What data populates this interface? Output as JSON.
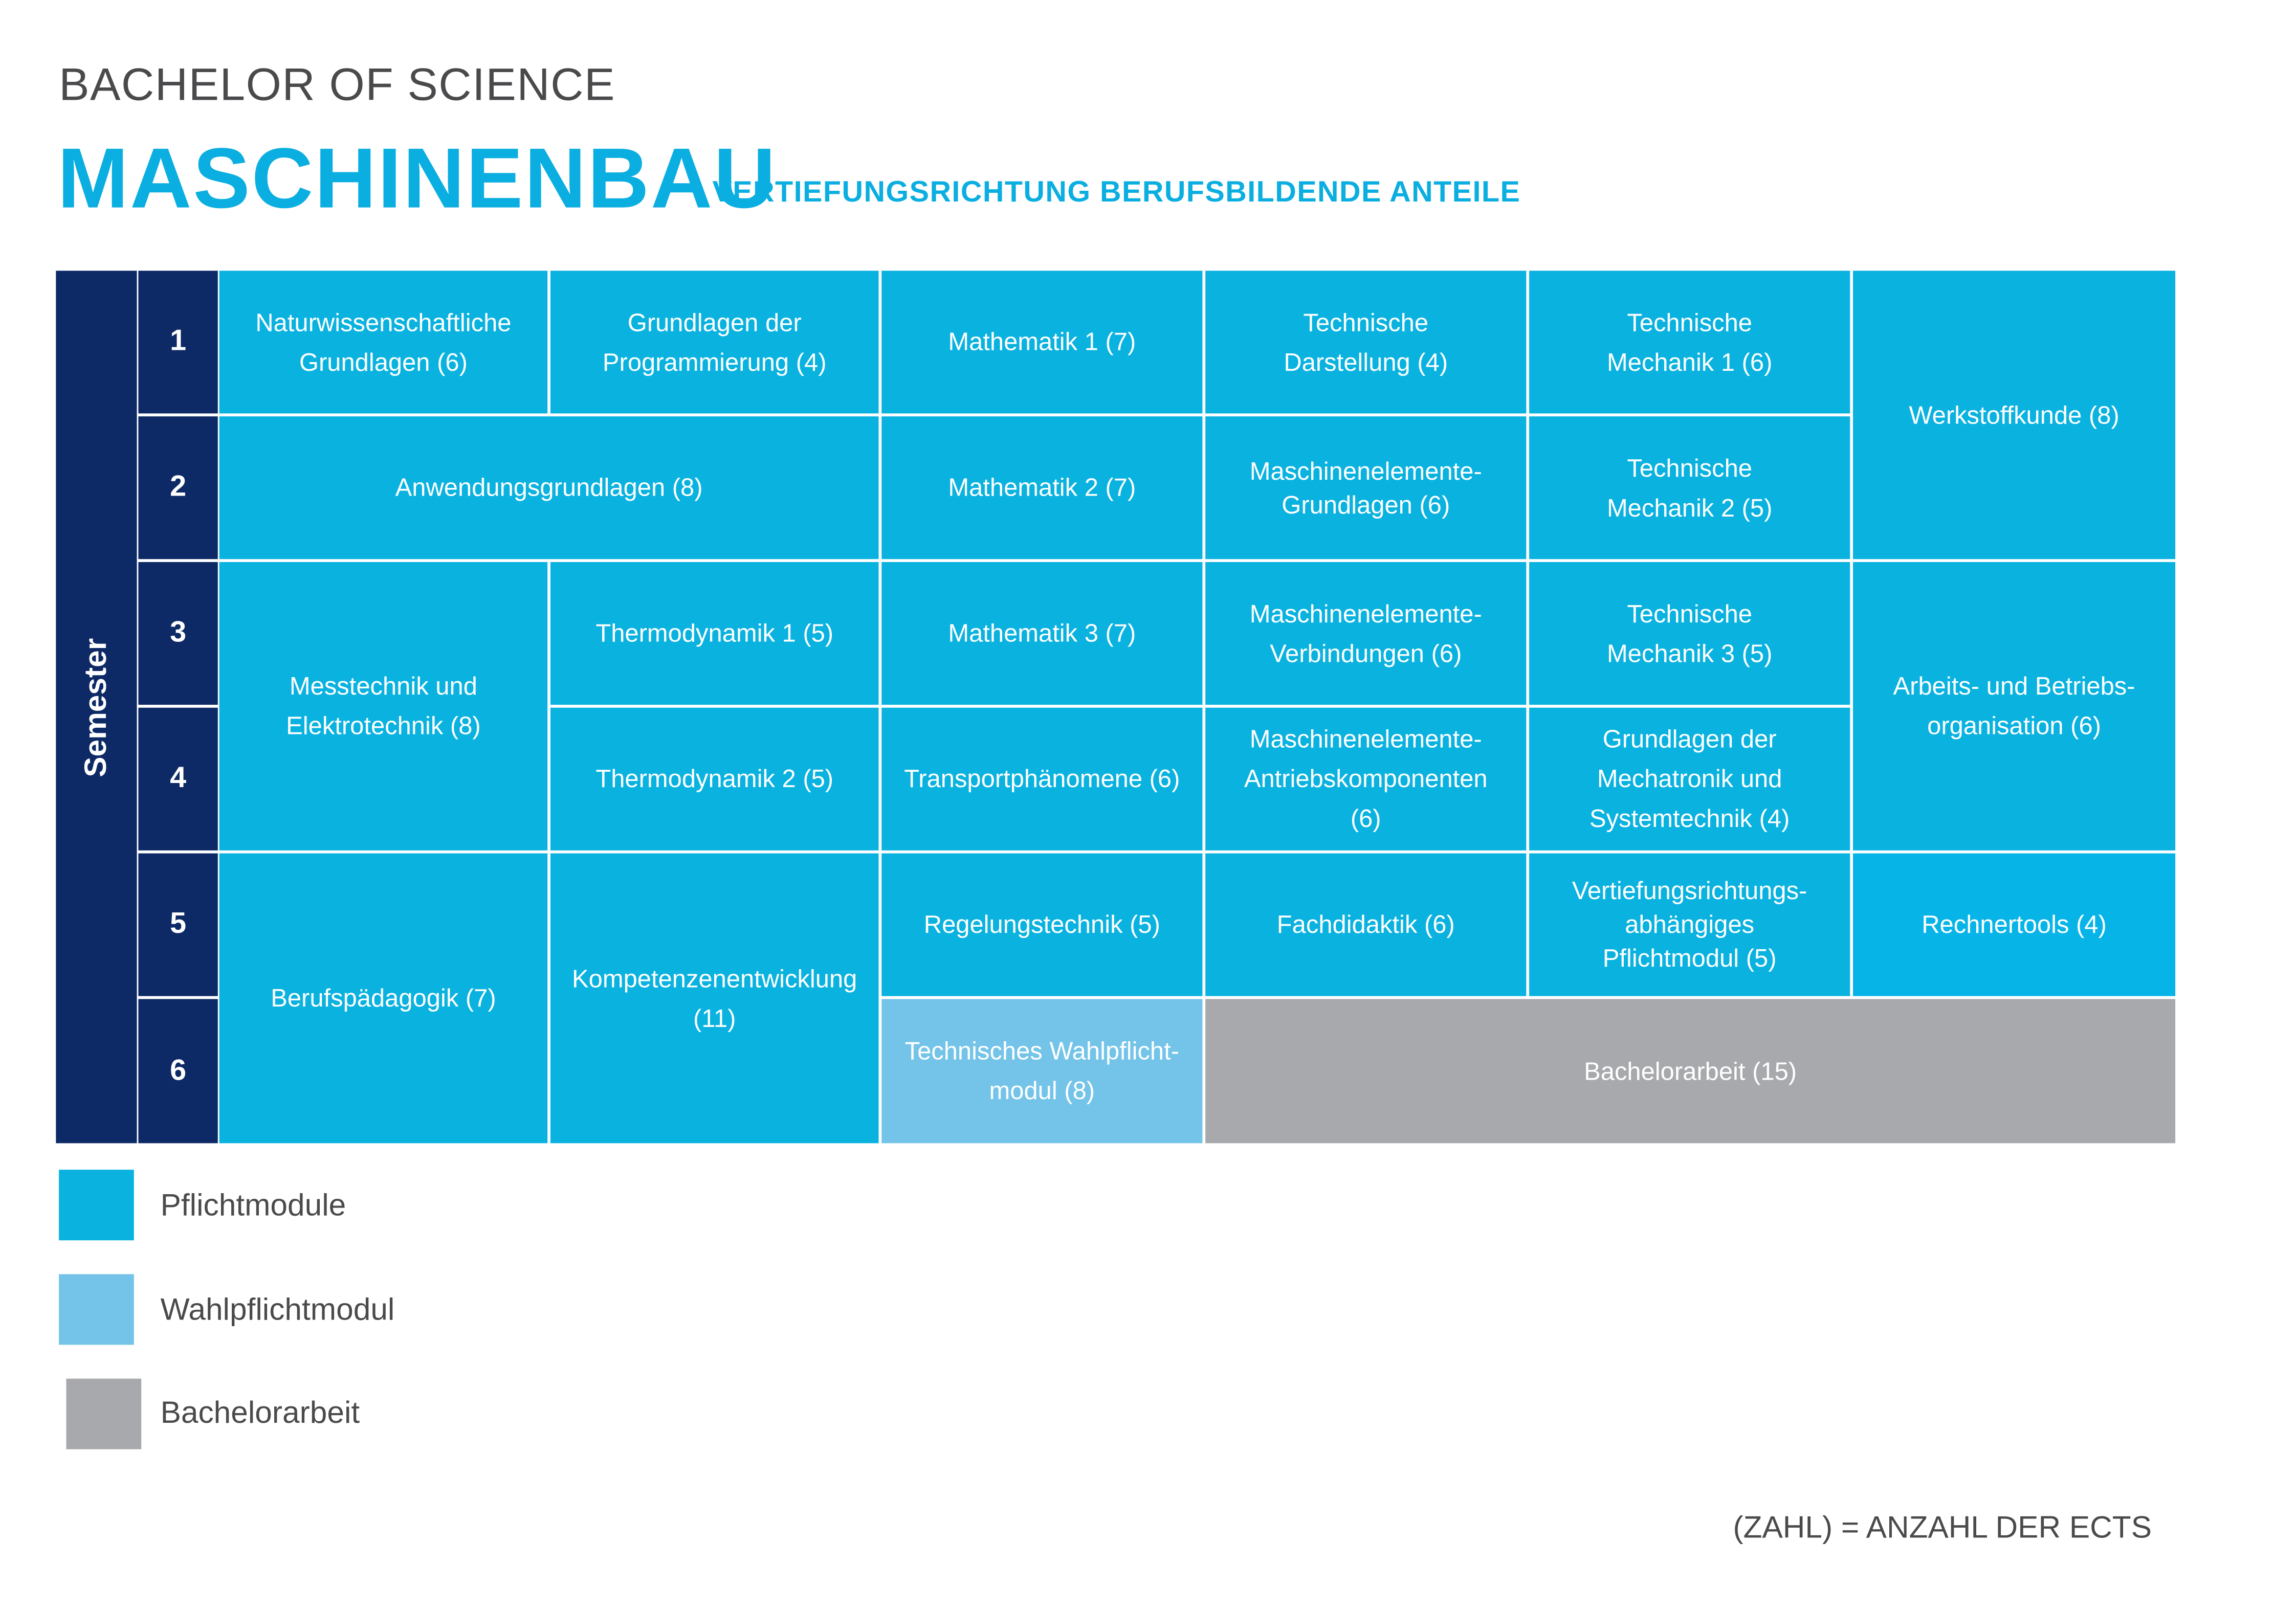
{
  "header": {
    "degree": "BACHELOR OF SCIENCE",
    "program": "MASCHINENBAU",
    "specialization": "VERTIEFUNGSRICHTUNG BERUFSBILDENDE ANTEILE"
  },
  "semester_label": "Semester",
  "semesters": [
    "1",
    "2",
    "3",
    "4",
    "5",
    "6"
  ],
  "colors": {
    "pflicht": "#0ab2e0",
    "wahlpflicht": "#73c4e8",
    "bachelorarbeit": "#a8a9ad",
    "semester": "#0d2a66",
    "title": "#0aaee0"
  },
  "modules": [
    "Naturwissenschaftliche\nGrundlagen (6)",
    "Grundlagen der\nProgrammierung (4)",
    "Mathematik 1 (7)",
    "Technische\nDarstellung (4)",
    "Technische\nMechanik 1 (6)",
    "Werkstoffkunde (8)",
    "Anwendungsgrundlagen (8)",
    "Mathematik 2 (7)",
    "Maschinenelemente-\nGrundlagen (6)",
    "Technische\nMechanik 2 (5)",
    "Messtechnik und\nElektrotechnik (8)",
    "Thermodynamik 1 (5)",
    "Mathematik 3 (7)",
    "Maschinenelemente-\nVerbindungen (6)",
    "Technische\nMechanik 3 (5)",
    "Arbeits- und Betriebs-\norganisation (6)",
    "Thermodynamik 2 (5)",
    "Transportphänomene (6)",
    "Maschinenelemente-\nAntriebskomponenten\n(6)",
    "Grundlagen der\nMechatronik und\nSystemtechnik (4)",
    "Berufspädagogik (7)",
    "Kompetenzenentwicklung\n(11)",
    "Regelungstechnik (5)",
    "Fachdidaktik (6)",
    "Vertiefungsrichtungs-\nabhängiges\nPflichtmodul (5)",
    "Rechnertools (4)",
    "Technisches Wahlpflicht-\nmodul (8)",
    "Bachelorarbeit (15)"
  ],
  "legend": [
    "Pflichtmodule",
    "Wahlpflichtmodul",
    "Bachelorarbeit"
  ],
  "footnote": "(ZAHL) = ANZAHL DER ECTS"
}
